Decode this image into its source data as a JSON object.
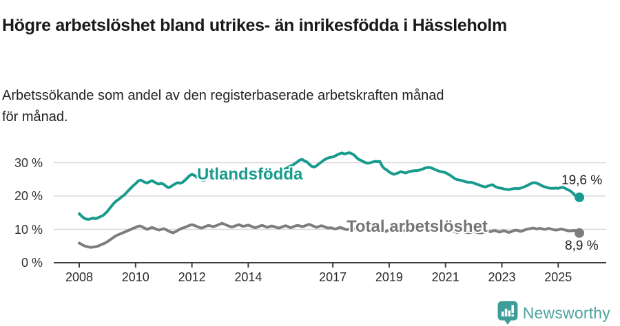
{
  "header": {},
  "chart_data": {
    "type": "line",
    "title": "Högre arbetslöshet bland utrikes- än inrikesfödda i Hässleholm",
    "subtitle": "Arbetssökande som andel av den registerbaserade arbetskraften månad för månad.",
    "frequency": "monthly",
    "x_start": {
      "year": 2008,
      "month": 1
    },
    "x_end": {
      "year": 2025,
      "month": 10
    },
    "x_tick_years": [
      2008,
      2010,
      2012,
      2014,
      2017,
      2019,
      2021,
      2023,
      2025
    ],
    "x_tick_labels": [
      "2008",
      "2010",
      "2012",
      "2014",
      "2017",
      "2019",
      "2021",
      "2023",
      "2025"
    ],
    "y_ticks": [
      0,
      10,
      20,
      30
    ],
    "y_tick_labels": [
      "0 %",
      "10 %",
      "20 %",
      "30 %"
    ],
    "ylim": [
      0,
      35
    ],
    "grid": "horizontal",
    "legend_position": "inline-labels",
    "colors": {
      "accent_teal": "#189b8e",
      "gray": "#7d7d7d",
      "gridline": "#d9d9d9",
      "axis": "#3c3c3c"
    },
    "series": [
      {
        "name": "Utlandsfödda",
        "color": "#189b8e",
        "end_label": "19,6 %",
        "last_value": 19.6,
        "values": [
          14.7,
          14.0,
          13.4,
          13.1,
          13.0,
          13.2,
          13.4,
          13.2,
          13.5,
          13.8,
          14.1,
          14.7,
          15.4,
          16.3,
          17.2,
          18.0,
          18.6,
          19.1,
          19.7,
          20.2,
          20.9,
          21.7,
          22.4,
          23.1,
          23.7,
          24.4,
          24.8,
          24.5,
          24.1,
          23.9,
          24.3,
          24.6,
          24.2,
          23.8,
          23.6,
          23.8,
          23.5,
          22.9,
          22.5,
          22.8,
          23.3,
          23.7,
          24.0,
          23.8,
          24.1,
          24.7,
          25.4,
          26.1,
          26.5,
          26.2,
          25.7,
          25.2,
          24.9,
          24.7,
          25.0,
          25.5,
          25.9,
          25.6,
          25.2,
          25.5,
          25.8,
          26.2,
          26.5,
          26.1,
          25.7,
          25.2,
          24.9,
          25.2,
          25.6,
          26.0,
          26.4,
          26.2,
          26.0,
          26.4,
          26.7,
          26.3,
          25.9,
          26.2,
          26.5,
          26.8,
          26.4,
          26.6,
          26.9,
          27.1,
          27.3,
          27.0,
          27.4,
          27.8,
          28.2,
          28.6,
          29.0,
          29.3,
          29.8,
          30.3,
          30.8,
          31.0,
          30.5,
          30.2,
          29.5,
          28.9,
          28.7,
          29.0,
          29.6,
          30.1,
          30.7,
          31.1,
          31.4,
          31.6,
          31.7,
          32.0,
          32.4,
          32.7,
          32.9,
          32.6,
          32.8,
          33.0,
          32.7,
          32.3,
          31.6,
          31.0,
          30.7,
          30.3,
          30.0,
          29.8,
          30.0,
          30.2,
          30.4,
          30.3,
          30.4,
          29.0,
          28.2,
          27.8,
          27.2,
          26.8,
          26.5,
          26.7,
          27.0,
          27.3,
          27.1,
          26.9,
          27.2,
          27.4,
          27.5,
          27.6,
          27.6,
          27.8,
          28.0,
          28.3,
          28.5,
          28.6,
          28.4,
          28.1,
          27.8,
          27.5,
          27.3,
          27.2,
          27.0,
          26.6,
          26.2,
          25.7,
          25.2,
          24.9,
          24.8,
          24.6,
          24.4,
          24.2,
          24.1,
          24.1,
          23.9,
          23.6,
          23.4,
          23.1,
          22.9,
          22.7,
          23.0,
          23.2,
          23.4,
          22.9,
          22.6,
          22.4,
          22.3,
          22.1,
          22.0,
          21.9,
          22.1,
          22.2,
          22.3,
          22.2,
          22.4,
          22.6,
          22.9,
          23.2,
          23.6,
          23.9,
          24.0,
          23.8,
          23.5,
          23.1,
          22.8,
          22.6,
          22.4,
          22.3,
          22.3,
          22.4,
          22.3,
          22.5,
          22.6,
          22.3,
          21.9,
          21.6,
          21.0,
          20.3,
          19.8,
          19.6
        ]
      },
      {
        "name": "Total arbetslöshet",
        "color": "#7d7d7d",
        "end_label": "8,9 %",
        "last_value": 8.9,
        "values": [
          5.9,
          5.5,
          5.1,
          4.9,
          4.7,
          4.6,
          4.7,
          4.8,
          5.0,
          5.3,
          5.6,
          5.9,
          6.3,
          6.8,
          7.3,
          7.8,
          8.2,
          8.5,
          8.8,
          9.1,
          9.4,
          9.7,
          10.0,
          10.3,
          10.6,
          10.9,
          11.0,
          10.7,
          10.3,
          10.0,
          10.3,
          10.6,
          10.3,
          10.0,
          9.8,
          10.0,
          10.2,
          9.9,
          9.5,
          9.2,
          9.0,
          9.3,
          9.7,
          10.1,
          10.4,
          10.6,
          10.9,
          11.2,
          11.4,
          11.2,
          10.9,
          10.6,
          10.4,
          10.6,
          10.9,
          11.2,
          11.0,
          10.8,
          11.0,
          11.3,
          11.6,
          11.8,
          11.5,
          11.2,
          10.9,
          10.7,
          10.9,
          11.2,
          11.4,
          11.1,
          10.9,
          11.1,
          11.3,
          11.0,
          10.7,
          10.5,
          10.7,
          11.0,
          11.2,
          10.9,
          10.6,
          10.8,
          11.0,
          10.8,
          10.6,
          10.4,
          10.6,
          10.9,
          11.1,
          10.8,
          10.5,
          10.7,
          11.0,
          11.2,
          11.0,
          10.8,
          11.0,
          11.3,
          11.5,
          11.2,
          10.9,
          10.6,
          10.8,
          11.1,
          10.9,
          10.6,
          10.4,
          10.5,
          10.3,
          10.1,
          10.3,
          10.6,
          10.4,
          10.1,
          9.9,
          10.1,
          10.4,
          10.2,
          10.0,
          9.8,
          10.0,
          10.2,
          9.9,
          9.6,
          9.4,
          9.6,
          9.9,
          10.1,
          9.8,
          9.5,
          9.3,
          9.5,
          9.7,
          9.5,
          9.3,
          9.5,
          9.7,
          9.9,
          9.7,
          9.5,
          9.7,
          9.9,
          10.1,
          10.3,
          10.5,
          10.7,
          10.9,
          11.1,
          11.2,
          11.0,
          10.8,
          10.6,
          10.4,
          10.2,
          10.0,
          9.9,
          10.1,
          9.9,
          9.7,
          9.5,
          9.3,
          9.1,
          9.3,
          9.5,
          9.3,
          9.1,
          9.0,
          9.2,
          9.4,
          9.2,
          9.0,
          8.9,
          9.1,
          9.3,
          9.5,
          9.3,
          9.5,
          9.7,
          9.4,
          9.2,
          9.4,
          9.6,
          9.3,
          9.1,
          9.3,
          9.6,
          9.8,
          9.6,
          9.4,
          9.6,
          9.9,
          10.1,
          10.2,
          10.4,
          10.3,
          10.1,
          10.3,
          10.2,
          10.0,
          10.1,
          10.3,
          10.1,
          9.9,
          9.8,
          9.9,
          10.1,
          10.0,
          9.8,
          9.6,
          9.5,
          9.6,
          9.7,
          9.4,
          8.9
        ]
      }
    ]
  },
  "footer": {
    "brand": "Newsworthy",
    "logo_color": "#3f9d98",
    "logo_icon": "bar-chart-speech-bubble"
  }
}
